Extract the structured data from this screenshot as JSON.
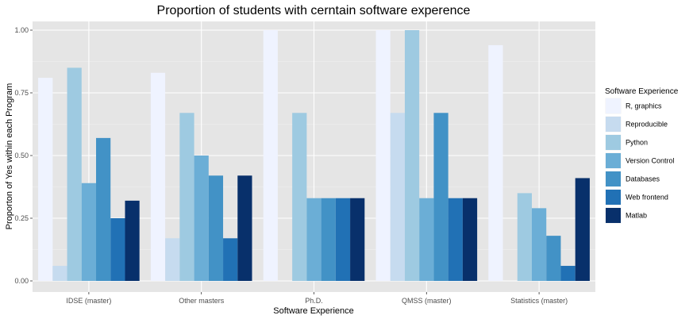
{
  "chart_data": {
    "type": "bar",
    "title": "Proportion of students with cerntain software experence",
    "xlabel": "Software Experience",
    "ylabel": "Proporton of Yes within each Program",
    "categories": [
      "IDSE (master)",
      "Other masters",
      "Ph.D.",
      "QMSS (master)",
      "Statistics (master)"
    ],
    "ylim": [
      0,
      1.0
    ],
    "yticks": [
      "0.00",
      "0.25",
      "0.50",
      "0.75",
      "1.00"
    ],
    "ytick_values": [
      0,
      0.25,
      0.5,
      0.75,
      1.0
    ],
    "grid": true,
    "legend_title": "Software Experience",
    "legend_position": "right",
    "series": [
      {
        "name": "R, graphics",
        "color": "#eff3ff",
        "values": [
          0.81,
          0.83,
          1.0,
          1.0,
          0.94
        ]
      },
      {
        "name": "Reproducible",
        "color": "#c6dbef",
        "values": [
          0.06,
          0.17,
          0.0,
          0.67,
          0.0
        ]
      },
      {
        "name": "Python",
        "color": "#9ecae1",
        "values": [
          0.85,
          0.67,
          0.67,
          1.0,
          0.35
        ]
      },
      {
        "name": "Version Control",
        "color": "#6baed6",
        "values": [
          0.39,
          0.5,
          0.33,
          0.33,
          0.29
        ]
      },
      {
        "name": "Databases",
        "color": "#4292c6",
        "values": [
          0.57,
          0.42,
          0.33,
          0.67,
          0.18
        ]
      },
      {
        "name": "Web frontend",
        "color": "#2171b5",
        "values": [
          0.25,
          0.17,
          0.33,
          0.33,
          0.06
        ]
      },
      {
        "name": "Matlab",
        "color": "#08306b",
        "values": [
          0.32,
          0.42,
          0.33,
          0.33,
          0.41
        ]
      }
    ]
  }
}
